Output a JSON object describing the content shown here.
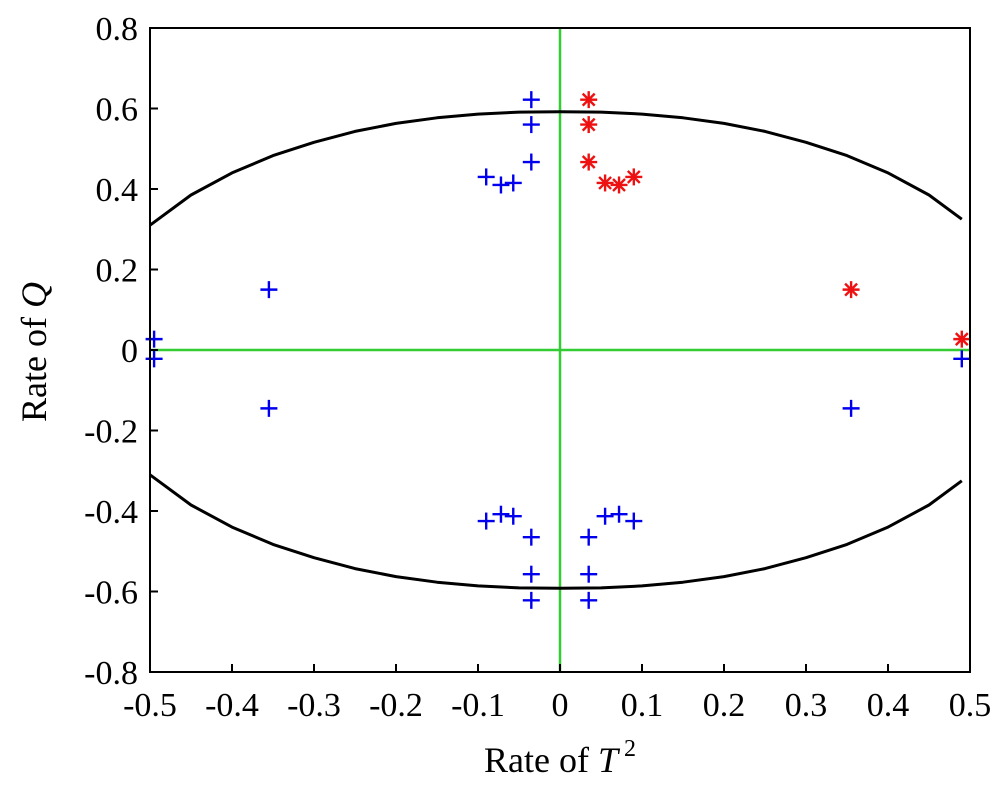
{
  "chart_data": {
    "type": "scatter",
    "title": "",
    "xlabel": {
      "prefix": "Rate of ",
      "var": "T",
      "sup": "2"
    },
    "ylabel": {
      "prefix": "Rate of ",
      "var": "Q"
    },
    "xlim": [
      -0.5,
      0.5
    ],
    "ylim": [
      -0.8,
      0.8
    ],
    "xticks": [
      "-0.5",
      "-0.4",
      "-0.3",
      "-0.2",
      "-0.1",
      "0",
      "0.1",
      "0.2",
      "0.3",
      "0.4",
      "0.5"
    ],
    "yticks": [
      "-0.8",
      "-0.6",
      "-0.4",
      "-0.2",
      "0",
      "0.2",
      "0.4",
      "0.6",
      "0.8"
    ],
    "grid": false,
    "reference_lines": {
      "color": "#33cc33",
      "x": 0,
      "y": 0
    },
    "boundary": {
      "color": "#000000",
      "upper": [
        [
          -0.5,
          0.31
        ],
        [
          -0.45,
          0.385
        ],
        [
          -0.4,
          0.44
        ],
        [
          -0.35,
          0.483
        ],
        [
          -0.3,
          0.516
        ],
        [
          -0.25,
          0.543
        ],
        [
          -0.2,
          0.563
        ],
        [
          -0.15,
          0.577
        ],
        [
          -0.1,
          0.586
        ],
        [
          -0.05,
          0.591
        ],
        [
          0,
          0.592
        ],
        [
          0.05,
          0.591
        ],
        [
          0.1,
          0.586
        ],
        [
          0.15,
          0.577
        ],
        [
          0.2,
          0.563
        ],
        [
          0.25,
          0.543
        ],
        [
          0.3,
          0.516
        ],
        [
          0.35,
          0.483
        ],
        [
          0.4,
          0.44
        ],
        [
          0.45,
          0.385
        ],
        [
          0.49,
          0.325
        ]
      ],
      "lower": [
        [
          -0.5,
          -0.31
        ],
        [
          -0.45,
          -0.385
        ],
        [
          -0.4,
          -0.44
        ],
        [
          -0.35,
          -0.483
        ],
        [
          -0.3,
          -0.516
        ],
        [
          -0.25,
          -0.543
        ],
        [
          -0.2,
          -0.563
        ],
        [
          -0.15,
          -0.577
        ],
        [
          -0.1,
          -0.586
        ],
        [
          -0.05,
          -0.591
        ],
        [
          0,
          -0.592
        ],
        [
          0.05,
          -0.591
        ],
        [
          0.1,
          -0.586
        ],
        [
          0.15,
          -0.577
        ],
        [
          0.2,
          -0.563
        ],
        [
          0.25,
          -0.543
        ],
        [
          0.3,
          -0.516
        ],
        [
          0.35,
          -0.483
        ],
        [
          0.4,
          -0.44
        ],
        [
          0.45,
          -0.385
        ],
        [
          0.49,
          -0.325
        ]
      ]
    },
    "series": [
      {
        "marker": "plus",
        "color": "#0000ee",
        "points": [
          [
            -0.035,
            0.622
          ],
          [
            -0.035,
            0.56
          ],
          [
            -0.035,
            0.467
          ],
          [
            -0.09,
            0.43
          ],
          [
            -0.072,
            0.41
          ],
          [
            -0.057,
            0.415
          ],
          [
            -0.355,
            0.15
          ],
          [
            -0.495,
            0.027
          ],
          [
            -0.495,
            -0.022
          ],
          [
            -0.355,
            -0.145
          ],
          [
            -0.09,
            -0.425
          ],
          [
            -0.072,
            -0.408
          ],
          [
            -0.057,
            -0.413
          ],
          [
            -0.035,
            -0.465
          ],
          [
            -0.035,
            -0.557
          ],
          [
            -0.035,
            -0.622
          ],
          [
            0.035,
            -0.465
          ],
          [
            0.035,
            -0.557
          ],
          [
            0.035,
            -0.622
          ],
          [
            0.055,
            -0.413
          ],
          [
            0.072,
            -0.408
          ],
          [
            0.09,
            -0.425
          ],
          [
            0.355,
            -0.145
          ],
          [
            0.49,
            -0.022
          ]
        ]
      },
      {
        "marker": "star",
        "color": "#ee1111",
        "points": [
          [
            0.035,
            0.622
          ],
          [
            0.035,
            0.56
          ],
          [
            0.035,
            0.467
          ],
          [
            0.055,
            0.415
          ],
          [
            0.072,
            0.41
          ],
          [
            0.09,
            0.43
          ],
          [
            0.355,
            0.15
          ],
          [
            0.49,
            0.027
          ]
        ]
      }
    ]
  }
}
